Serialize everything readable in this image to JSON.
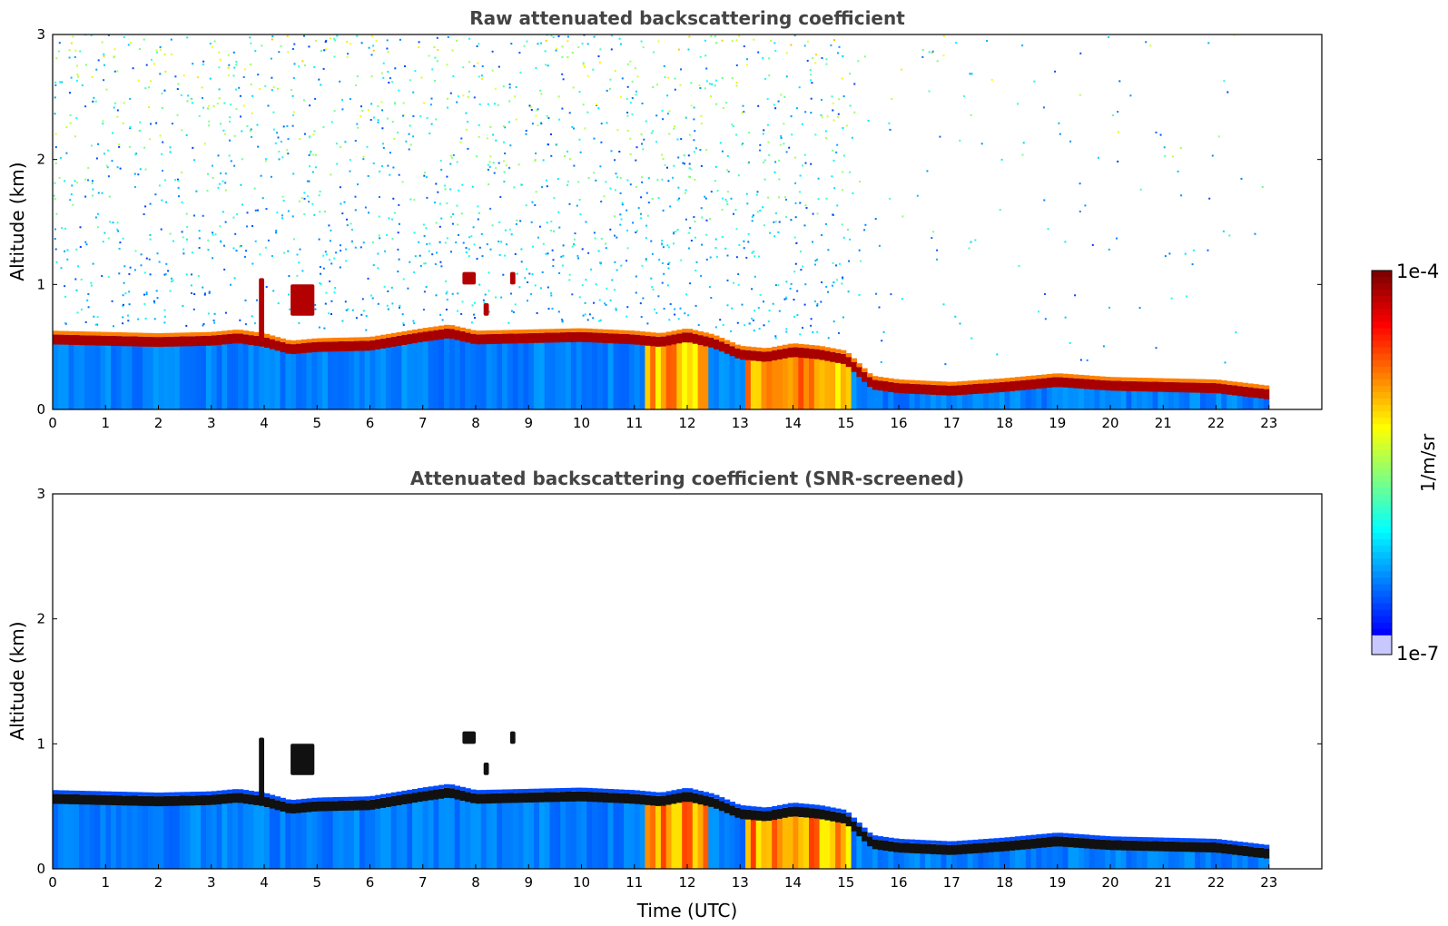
{
  "chart_data": [
    {
      "type": "heatmap",
      "title": "Raw attenuated backscattering coefficient",
      "xlabel": "",
      "ylabel": "Altitude (km)",
      "xlim": [
        0,
        24
      ],
      "ylim": [
        0,
        3
      ],
      "xticks": [
        "0",
        "1",
        "2",
        "3",
        "4",
        "5",
        "6",
        "7",
        "8",
        "9",
        "10",
        "11",
        "12",
        "13",
        "14",
        "15",
        "16",
        "17",
        "18",
        "19",
        "20",
        "21",
        "22",
        "23"
      ],
      "yticks": [
        "0",
        "1",
        "2",
        "3"
      ],
      "data_end_hour": 23,
      "layer_top_km": {
        "time_utc": [
          0,
          1,
          2,
          3,
          3.5,
          4,
          4.5,
          5,
          6,
          7,
          7.5,
          8,
          9,
          10,
          11,
          11.5,
          12,
          12.5,
          13,
          13.5,
          14,
          14.5,
          15,
          15.5,
          16,
          17,
          18,
          19,
          20,
          21,
          22,
          23
        ],
        "altitude_km": [
          0.58,
          0.57,
          0.56,
          0.57,
          0.59,
          0.56,
          0.5,
          0.52,
          0.53,
          0.6,
          0.63,
          0.58,
          0.59,
          0.6,
          0.58,
          0.56,
          0.6,
          0.55,
          0.46,
          0.44,
          0.48,
          0.46,
          0.42,
          0.22,
          0.19,
          0.17,
          0.2,
          0.24,
          0.21,
          0.2,
          0.19,
          0.14
        ]
      },
      "elevated_aerosol_features": [
        {
          "time_utc": [
            3.9,
            4.0
          ],
          "altitude_km": [
            0.55,
            1.05
          ]
        },
        {
          "time_utc": [
            4.5,
            4.95
          ],
          "altitude_km": [
            0.75,
            1.0
          ]
        },
        {
          "time_utc": [
            7.75,
            8.0
          ],
          "altitude_km": [
            1.0,
            1.1
          ]
        },
        {
          "time_utc": [
            8.65,
            8.75
          ],
          "altitude_km": [
            1.0,
            1.1
          ]
        },
        {
          "time_utc": [
            8.15,
            8.25
          ],
          "altitude_km": [
            0.75,
            0.85
          ]
        }
      ]
    },
    {
      "type": "heatmap",
      "title": "Attenuated backscattering coefficient (SNR-screened)",
      "xlabel": "Time (UTC)",
      "ylabel": "Altitude (km)",
      "xlim": [
        0,
        24
      ],
      "ylim": [
        0,
        3
      ],
      "xticks": [
        "0",
        "1",
        "2",
        "3",
        "4",
        "5",
        "6",
        "7",
        "8",
        "9",
        "10",
        "11",
        "12",
        "13",
        "14",
        "15",
        "16",
        "17",
        "18",
        "19",
        "20",
        "21",
        "22",
        "23"
      ],
      "yticks": [
        "0",
        "1",
        "2",
        "3"
      ],
      "data_end_hour": 23
    }
  ],
  "colorbar": {
    "label": "1/m/sr",
    "max_label": "1e-4",
    "min_label": "1e-7",
    "scale": "log",
    "colormap": "jet"
  }
}
